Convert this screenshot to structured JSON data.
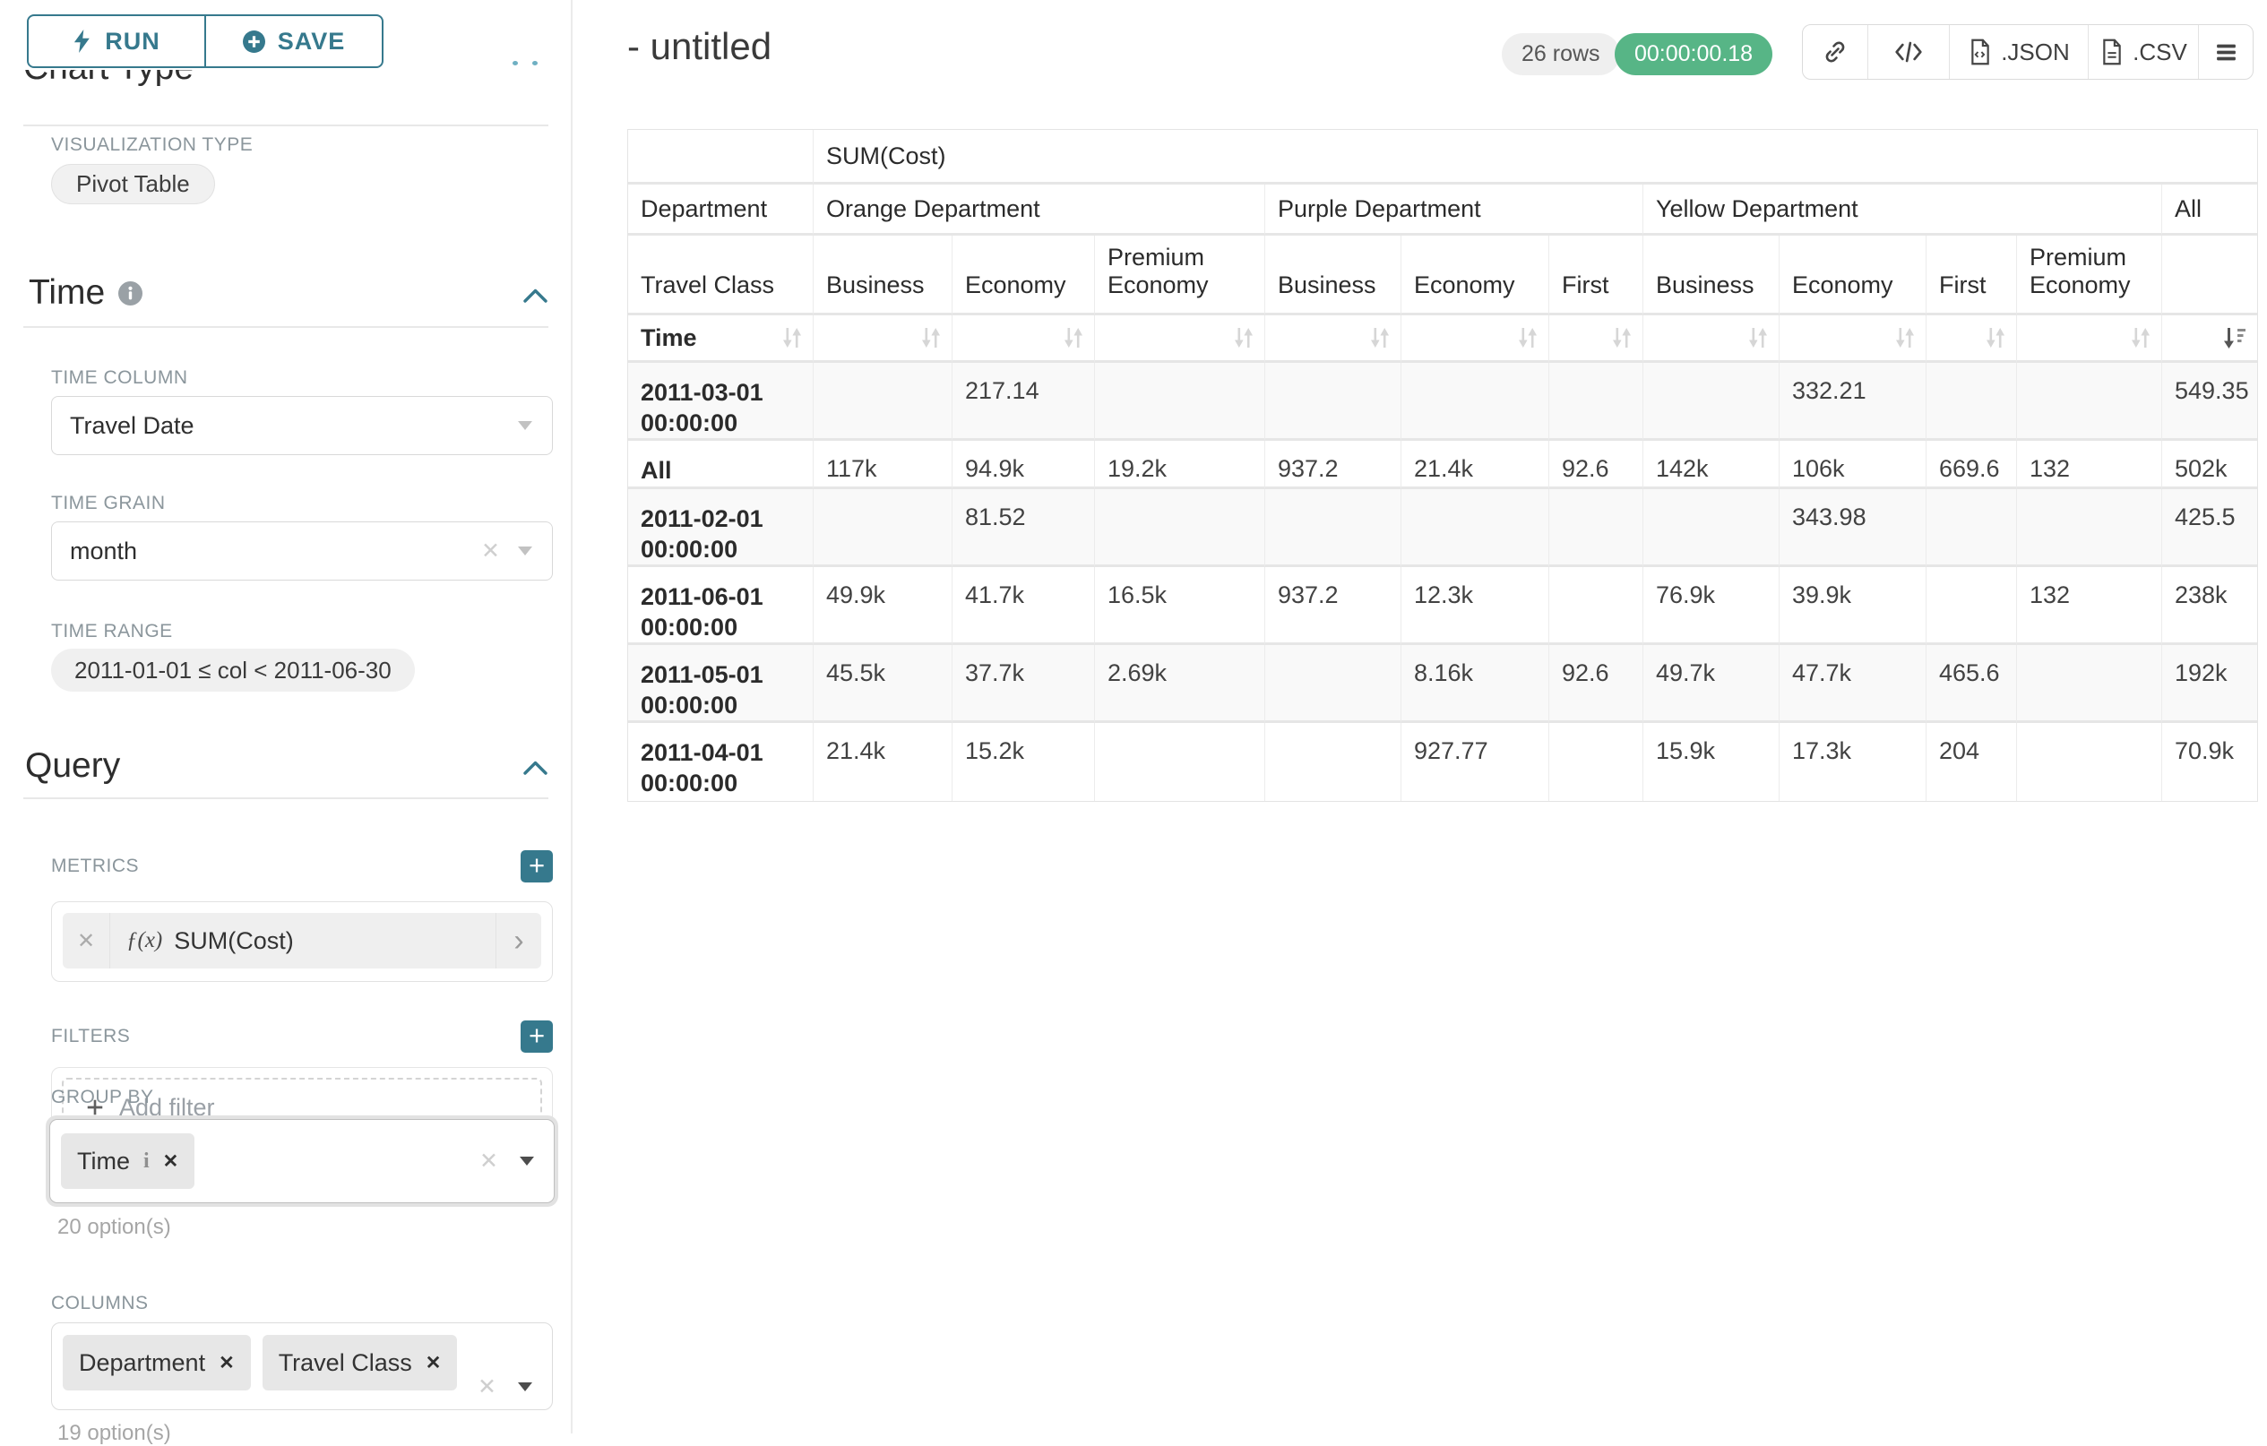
{
  "accent_color": "#36798d",
  "success_color": "#57b586",
  "sidebar": {
    "run_button": "RUN",
    "save_button": "SAVE",
    "chart_type_heading": "Chart Type",
    "visualization_type_label": "VISUALIZATION TYPE",
    "visualization_type_value": "Pivot Table",
    "time_section": {
      "heading": "Time",
      "time_column_label": "TIME COLUMN",
      "time_column_value": "Travel Date",
      "time_grain_label": "TIME GRAIN",
      "time_grain_value": "month",
      "time_range_label": "TIME RANGE",
      "time_range_value": "2011-01-01 ≤ col < 2011-06-30"
    },
    "query_section": {
      "heading": "Query",
      "metrics_label": "METRICS",
      "metric_prefix": "ƒ(x)",
      "metric_value": "SUM(Cost)",
      "filters_label": "FILTERS",
      "add_filter_label": "Add filter",
      "group_by_label": "GROUP BY",
      "group_by_tokens": [
        {
          "label": "Time",
          "info": true
        }
      ],
      "group_by_hint": "20 option(s)",
      "columns_label": "COLUMNS",
      "columns_tokens": [
        {
          "label": "Department",
          "info": false
        },
        {
          "label": "Travel Class",
          "info": false
        }
      ],
      "columns_hint": "19 option(s)"
    }
  },
  "header": {
    "title": "- untitled",
    "rows_badge": "26 rows",
    "timer_badge": "00:00:00.18",
    "json_button": ".JSON",
    "csv_button": ".CSV"
  },
  "icons": {
    "close": "✕",
    "plus": "+",
    "chevron_right": "›",
    "info_letter": "i"
  },
  "chart_data": {
    "type": "table",
    "title": "SUM(Cost)",
    "metric_header": "SUM(Cost)",
    "corner": {
      "department": "Department",
      "travel_class": "Travel Class",
      "time": "Time"
    },
    "column_groups": [
      {
        "label": "Orange Department",
        "children": [
          "Business",
          "Economy",
          "Premium Economy"
        ]
      },
      {
        "label": "Purple Department",
        "children": [
          "Business",
          "Economy",
          "First"
        ]
      },
      {
        "label": "Yellow Department",
        "children": [
          "Business",
          "Economy",
          "First",
          "Premium Economy"
        ]
      },
      {
        "label": "All",
        "children": [
          ""
        ]
      }
    ],
    "sorted_column": "All",
    "sort_direction": "descending",
    "rows": [
      {
        "label": "2011-03-01 00:00:00",
        "values": [
          "",
          "217.14",
          "",
          "",
          "",
          "",
          "",
          "332.21",
          "",
          "",
          "549.35"
        ]
      },
      {
        "label": "All",
        "values": [
          "117k",
          "94.9k",
          "19.2k",
          "937.2",
          "21.4k",
          "92.6",
          "142k",
          "106k",
          "669.6",
          "132",
          "502k"
        ]
      },
      {
        "label": "2011-02-01 00:00:00",
        "values": [
          "",
          "81.52",
          "",
          "",
          "",
          "",
          "",
          "343.98",
          "",
          "",
          "425.5"
        ]
      },
      {
        "label": "2011-06-01 00:00:00",
        "values": [
          "49.9k",
          "41.7k",
          "16.5k",
          "937.2",
          "12.3k",
          "",
          "76.9k",
          "39.9k",
          "",
          "132",
          "238k"
        ]
      },
      {
        "label": "2011-05-01 00:00:00",
        "values": [
          "45.5k",
          "37.7k",
          "2.69k",
          "",
          "8.16k",
          "92.6",
          "49.7k",
          "47.7k",
          "465.6",
          "",
          "192k"
        ]
      },
      {
        "label": "2011-04-01 00:00:00",
        "values": [
          "21.4k",
          "15.2k",
          "",
          "",
          "927.77",
          "",
          "15.9k",
          "17.3k",
          "204",
          "",
          "70.9k"
        ]
      }
    ]
  }
}
